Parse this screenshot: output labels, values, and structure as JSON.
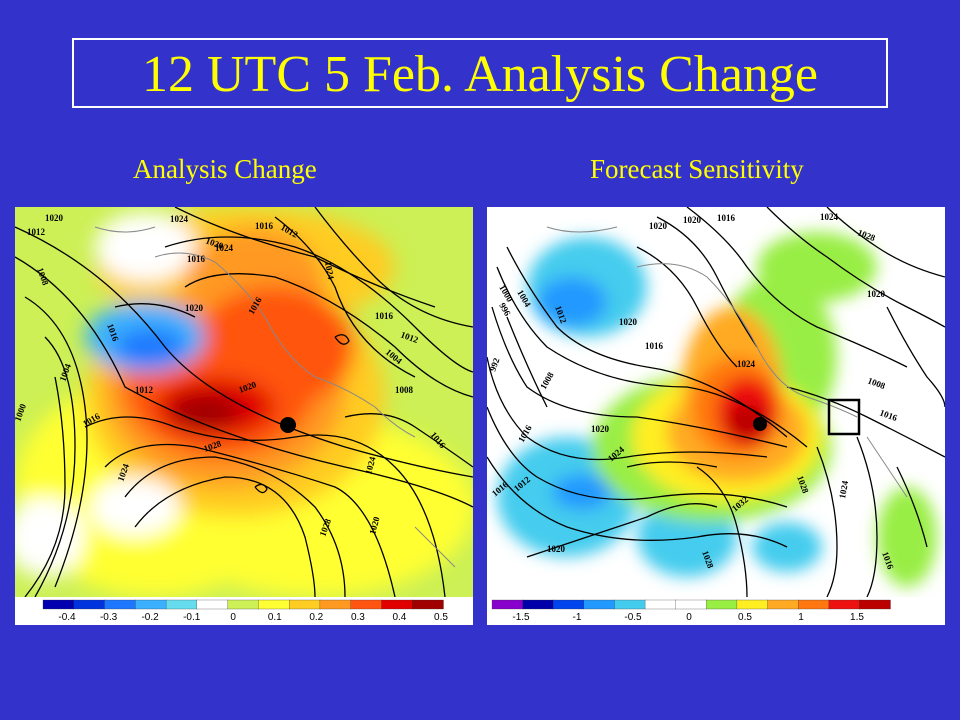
{
  "title": "12 UTC 5 Feb. Analysis Change",
  "panels": [
    {
      "subtitle": "Analysis Change",
      "colorbar": {
        "ticks": [
          "-0.4",
          "-0.3",
          "-0.2",
          "-0.1",
          "0",
          "0.1",
          "0.2",
          "0.3",
          "0.4",
          "0.5"
        ],
        "colors": [
          "#0000b0",
          "#0033dd",
          "#1e77ff",
          "#3ab0ff",
          "#66ddee",
          "#ffffff",
          "#ccf055",
          "#ffff33",
          "#ffcc22",
          "#ff9922",
          "#ff5511",
          "#e00000",
          "#a00000"
        ]
      },
      "contour_labels": [
        "1020",
        "1012",
        "1008",
        "1016",
        "1004",
        "1000",
        "1024",
        "1016",
        "1012",
        "1020",
        "1016",
        "1020",
        "1028",
        "1024",
        "1028",
        "1020",
        "1024",
        "1016",
        "1012",
        "1016",
        "1012",
        "1004",
        "1008",
        "1016",
        "1024",
        "1024",
        "1016",
        "1020"
      ]
    },
    {
      "subtitle": "Forecast Sensitivity",
      "colorbar": {
        "ticks": [
          "-1.5",
          "-1",
          "-0.5",
          "0",
          "0.5",
          "1",
          "1.5"
        ],
        "colors": [
          "#8800cc",
          "#0000aa",
          "#0044ee",
          "#2299ff",
          "#44ccee",
          "#ffffff",
          "#ffffff",
          "#99ee44",
          "#ffee22",
          "#ffaa22",
          "#ff7711",
          "#ee1111",
          "#bb0000"
        ]
      },
      "contour_labels": [
        "1020",
        "1020",
        "1016",
        "1024",
        "1028",
        "1004",
        "1000",
        "996",
        "992",
        "1012",
        "1020",
        "1016",
        "1008",
        "1016",
        "1020",
        "1024",
        "1012",
        "1016",
        "1020",
        "1024",
        "1032",
        "1028",
        "1028",
        "1024",
        "1008",
        "1016",
        "1016",
        "1020"
      ]
    }
  ]
}
